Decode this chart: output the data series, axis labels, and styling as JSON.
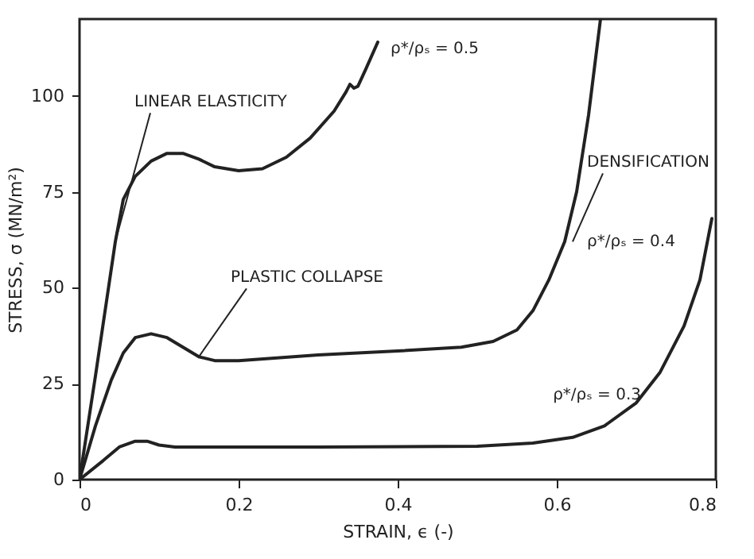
{
  "chart_data": {
    "type": "line",
    "xlabel": "STRAIN, ϵ (-)",
    "ylabel": "STRESS, σ (MN/m²)",
    "xlim": [
      0,
      0.8
    ],
    "xticks": [
      {
        "value": 0,
        "label": "0"
      },
      0.2,
      0.4,
      0.6,
      0.8
    ],
    "ylim": [
      0,
      120
    ],
    "yticks": [
      0,
      25,
      50,
      75,
      100
    ],
    "series": [
      {
        "name": "ρ*/ρₛ = 0.5",
        "color": "#222222",
        "x": [
          0,
          0.02,
          0.035,
          0.045,
          0.055,
          0.07,
          0.09,
          0.11,
          0.13,
          0.15,
          0.17,
          0.2,
          0.23,
          0.26,
          0.29,
          0.32,
          0.335,
          0.34,
          0.345,
          0.35,
          0.36,
          0.375
        ],
        "values": [
          0,
          27,
          48,
          62,
          73,
          79,
          83,
          85,
          85,
          83.5,
          81.5,
          80.5,
          81,
          84,
          89,
          96,
          101,
          103,
          102,
          102.5,
          107,
          114
        ]
      },
      {
        "name": "ρ*/ρₛ = 0.4",
        "color": "#222222",
        "x": [
          0,
          0.02,
          0.04,
          0.055,
          0.07,
          0.09,
          0.11,
          0.13,
          0.15,
          0.17,
          0.2,
          0.3,
          0.4,
          0.48,
          0.52,
          0.55,
          0.57,
          0.59,
          0.61,
          0.625,
          0.64,
          0.655
        ],
        "values": [
          0,
          14,
          26,
          33,
          37,
          38,
          37,
          34.5,
          32,
          31,
          31,
          32.5,
          33.5,
          34.5,
          36,
          39,
          44,
          52,
          62,
          75,
          95,
          120
        ]
      },
      {
        "name": "ρ*/ρₛ = 0.3",
        "color": "#222222",
        "x": [
          0,
          0.03,
          0.05,
          0.07,
          0.085,
          0.1,
          0.12,
          0.3,
          0.5,
          0.57,
          0.62,
          0.66,
          0.7,
          0.73,
          0.76,
          0.78,
          0.795
        ],
        "values": [
          0,
          5,
          8.5,
          10,
          10,
          9,
          8.5,
          8.5,
          8.7,
          9.5,
          11,
          14,
          20,
          28,
          40,
          52,
          68
        ]
      }
    ],
    "annotations": [
      {
        "text": "LINEAR ELASTICITY",
        "x": 0.045,
        "y": 62
      },
      {
        "text": "PLASTIC COLLAPSE",
        "x": 0.15,
        "y": 32
      },
      {
        "text": "DENSIFICATION",
        "x": 0.62,
        "y": 62
      }
    ]
  }
}
